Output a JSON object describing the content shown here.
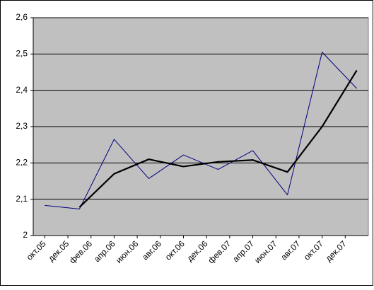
{
  "chart_data": {
    "type": "line",
    "x": [
      "2005-10",
      "2006-01",
      "2006-04",
      "2006-07",
      "2006-10",
      "2007-01",
      "2007-04",
      "2007-07",
      "2007-10",
      "2008-01"
    ],
    "series": [
      {
        "color": "#000080",
        "values": [
          2.083,
          2.073,
          2.265,
          2.157,
          2.222,
          2.182,
          2.234,
          2.112,
          2.505,
          2.405
        ]
      },
      {
        "color": "#000000",
        "values": [
          null,
          2.078,
          2.17,
          2.21,
          2.19,
          2.203,
          2.208,
          2.175,
          2.3,
          2.455
        ]
      }
    ],
    "xlim": [
      "2005-09",
      "2008-02"
    ],
    "xticks": [
      {
        "value": "2005-10",
        "label": "окт.05"
      },
      {
        "value": "2005-12",
        "label": "дек.05"
      },
      {
        "value": "2006-02",
        "label": "фев.06"
      },
      {
        "value": "2006-04",
        "label": "апр.06"
      },
      {
        "value": "2006-06",
        "label": "июн.06"
      },
      {
        "value": "2006-08",
        "label": "авг.06"
      },
      {
        "value": "2006-10",
        "label": "окт.06"
      },
      {
        "value": "2006-12",
        "label": "дек.06"
      },
      {
        "value": "2007-02",
        "label": "фев.07"
      },
      {
        "value": "2007-04",
        "label": "апр.07"
      },
      {
        "value": "2007-06",
        "label": "июн.07"
      },
      {
        "value": "2007-08",
        "label": "авг.07"
      },
      {
        "value": "2007-10",
        "label": "окт.07"
      },
      {
        "value": "2007-12",
        "label": "дек.07"
      }
    ],
    "ylim": [
      2,
      2.6
    ],
    "yticks": [
      2,
      {
        "value": 2.1,
        "label": "2,1"
      },
      {
        "value": 2.2,
        "label": "2,2"
      },
      {
        "value": 2.3,
        "label": "2,3"
      },
      {
        "value": 2.4,
        "label": "2,4"
      },
      {
        "value": 2.5,
        "label": "2,5"
      },
      {
        "value": 2.6,
        "label": "2,6"
      }
    ],
    "grid": true,
    "plot_background": "#c0c0c0"
  }
}
